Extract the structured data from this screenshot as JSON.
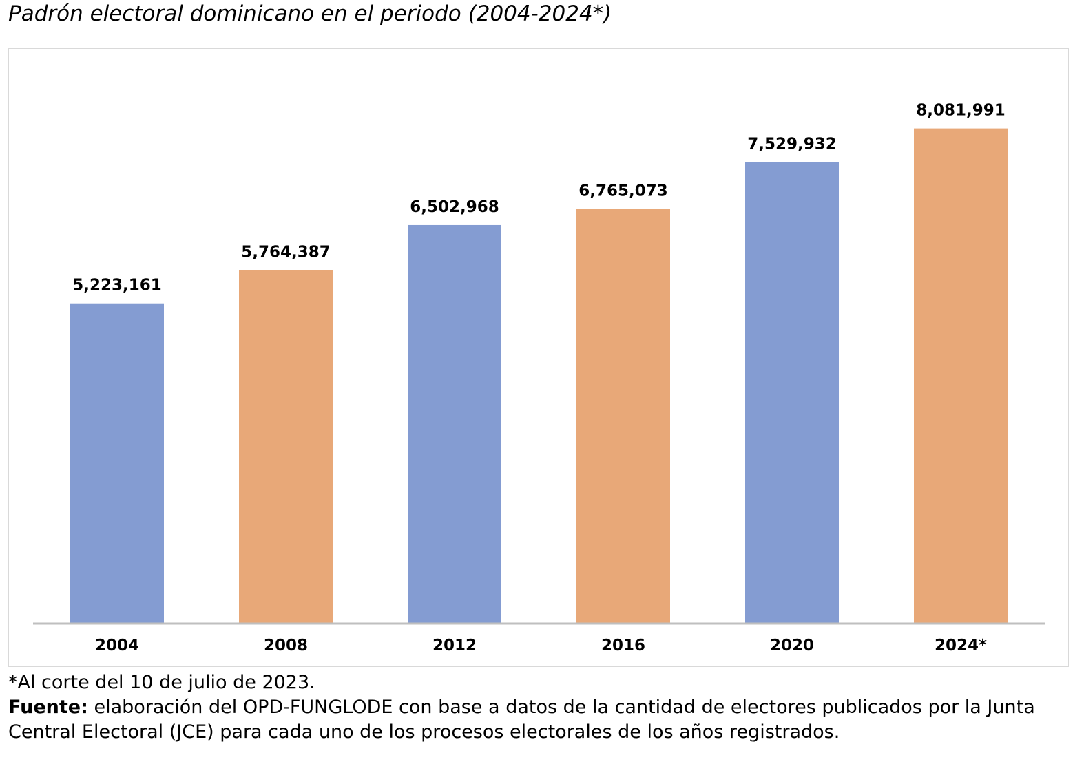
{
  "chart_data": {
    "type": "bar",
    "title": "Padrón electoral dominicano en el periodo (2004-2024*)",
    "categories": [
      "2004",
      "2008",
      "2012",
      "2016",
      "2020",
      "2024*"
    ],
    "values": [
      5223161,
      5764387,
      6502968,
      6765073,
      7529932,
      8081991
    ],
    "labels": [
      "5,223,161",
      "5,764,387",
      "6,502,968",
      "6,765,073",
      "7,529,932",
      "8,081,991"
    ],
    "colors": [
      "#849CD2",
      "#E8A878",
      "#849CD2",
      "#E8A878",
      "#849CD2",
      "#E8A878"
    ],
    "xlabel": "",
    "ylabel": "",
    "ylim": [
      0,
      9000000
    ],
    "grid": false
  },
  "notes": {
    "footnote": "*Al corte del 10 de julio de 2023.",
    "source_label": "Fuente:",
    "source_text": " elaboración del OPD-FUNGLODE con base a datos de la cantidad de electores publicados por la Junta Central Electoral (JCE) para cada uno de los procesos electorales de los años registrados."
  }
}
